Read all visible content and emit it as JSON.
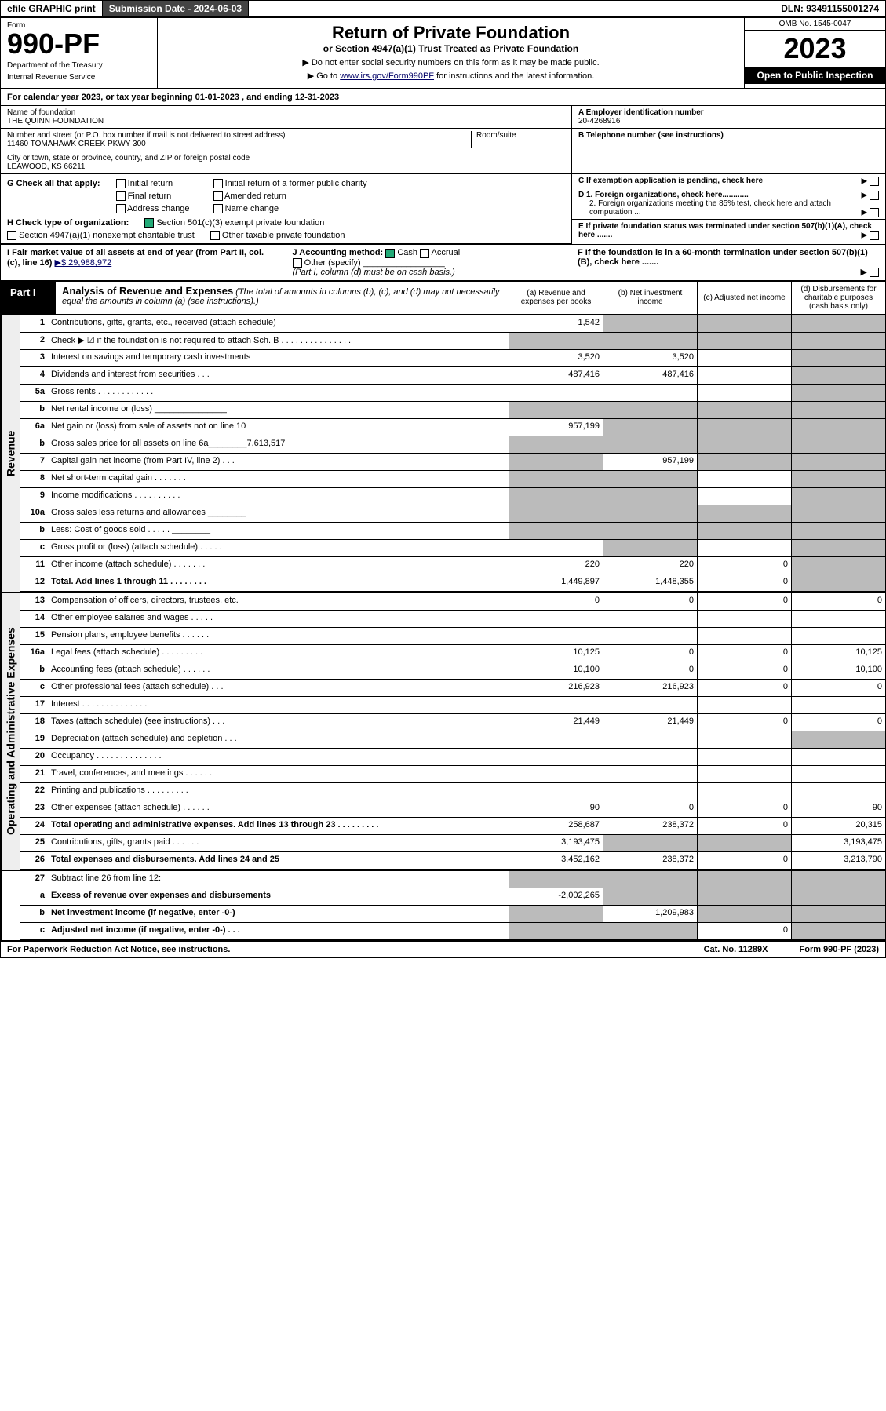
{
  "topbar": {
    "efile": "efile GRAPHIC print",
    "submission": "Submission Date - 2024-06-03",
    "dln": "DLN: 93491155001274"
  },
  "header": {
    "form": "Form",
    "formno": "990-PF",
    "dept1": "Department of the Treasury",
    "dept2": "Internal Revenue Service",
    "title": "Return of Private Foundation",
    "subtitle": "or Section 4947(a)(1) Trust Treated as Private Foundation",
    "note1": "▶ Do not enter social security numbers on this form as it may be made public.",
    "note2_pre": "▶ Go to ",
    "note2_link": "www.irs.gov/Form990PF",
    "note2_post": " for instructions and the latest information.",
    "omb": "OMB No. 1545-0047",
    "year": "2023",
    "open": "Open to Public Inspection"
  },
  "calyear": {
    "pre": "For calendar year 2023, or tax year beginning ",
    "begin": "01-01-2023",
    "mid": " , and ending ",
    "end": "12-31-2023"
  },
  "info": {
    "name_label": "Name of foundation",
    "name": "THE QUINN FOUNDATION",
    "street_label": "Number and street (or P.O. box number if mail is not delivered to street address)",
    "street": "11460 TOMAHAWK CREEK PKWY 300",
    "room_label": "Room/suite",
    "city_label": "City or town, state or province, country, and ZIP or foreign postal code",
    "city": "LEAWOOD, KS  66211",
    "A_label": "A Employer identification number",
    "A": "20-4268916",
    "B_label": "B Telephone number (see instructions)",
    "C_label": "C If exemption application is pending, check here",
    "D1_label": "D 1. Foreign organizations, check here............",
    "D2_label": "2. Foreign organizations meeting the 85% test, check here and attach computation ...",
    "E_label": "E If private foundation status was terminated under section 507(b)(1)(A), check here .......",
    "F_label": "F If the foundation is in a 60-month termination under section 507(b)(1)(B), check here ......."
  },
  "G": {
    "label": "G Check all that apply:",
    "opts": [
      "Initial return",
      "Final return",
      "Address change",
      "Initial return of a former public charity",
      "Amended return",
      "Name change"
    ]
  },
  "H": {
    "label": "H Check type of organization:",
    "opt1": "Section 501(c)(3) exempt private foundation",
    "opt2": "Section 4947(a)(1) nonexempt charitable trust",
    "opt3": "Other taxable private foundation"
  },
  "I": {
    "label": "I Fair market value of all assets at end of year (from Part II, col. (c), line 16)",
    "value": "▶$  29,988,972"
  },
  "J": {
    "label": "J Accounting method:",
    "cash": "Cash",
    "accrual": "Accrual",
    "other": "Other (specify)",
    "note": "(Part I, column (d) must be on cash basis.)"
  },
  "part1": {
    "label": "Part I",
    "title": "Analysis of Revenue and Expenses",
    "titlenote": " (The total of amounts in columns (b), (c), and (d) may not necessarily equal the amounts in column (a) (see instructions).)",
    "cols": {
      "a": "(a) Revenue and expenses per books",
      "b": "(b) Net investment income",
      "c": "(c) Adjusted net income",
      "d": "(d) Disbursements for charitable purposes (cash basis only)"
    }
  },
  "revenue_label": "Revenue",
  "revenue_rows": [
    {
      "num": "1",
      "desc": "Contributions, gifts, grants, etc., received (attach schedule)",
      "a": "1,542",
      "b": "",
      "c": "",
      "d": "",
      "gb": true,
      "gc": true,
      "gd": true
    },
    {
      "num": "2",
      "desc": "Check ▶ ☑ if the foundation is not required to attach Sch. B   .  .  .  .  .  .  .  .  .  .  .  .  .  .  .",
      "a": "",
      "b": "",
      "c": "",
      "d": "",
      "gb": true,
      "gc": true,
      "gd": true,
      "ga": true
    },
    {
      "num": "3",
      "desc": "Interest on savings and temporary cash investments",
      "a": "3,520",
      "b": "3,520",
      "c": "",
      "d": "",
      "gd": true
    },
    {
      "num": "4",
      "desc": "Dividends and interest from securities   .  .  .",
      "a": "487,416",
      "b": "487,416",
      "c": "",
      "d": "",
      "gd": true
    },
    {
      "num": "5a",
      "desc": "Gross rents   .  .  .  .  .  .  .  .  .  .  .  .",
      "a": "",
      "b": "",
      "c": "",
      "d": "",
      "gd": true
    },
    {
      "num": "b",
      "desc": "Net rental income or (loss) _______________",
      "a": "",
      "b": "",
      "c": "",
      "d": "",
      "ga": true,
      "gb": true,
      "gc": true,
      "gd": true
    },
    {
      "num": "6a",
      "desc": "Net gain or (loss) from sale of assets not on line 10",
      "a": "957,199",
      "b": "",
      "c": "",
      "d": "",
      "gb": true,
      "gc": true,
      "gd": true
    },
    {
      "num": "b",
      "desc": "Gross sales price for all assets on line 6a________7,613,517",
      "a": "",
      "b": "",
      "c": "",
      "d": "",
      "ga": true,
      "gb": true,
      "gc": true,
      "gd": true
    },
    {
      "num": "7",
      "desc": "Capital gain net income (from Part IV, line 2)   .  .  .",
      "a": "",
      "b": "957,199",
      "c": "",
      "d": "",
      "ga": true,
      "gc": true,
      "gd": true
    },
    {
      "num": "8",
      "desc": "Net short-term capital gain  .  .  .  .  .  .  .",
      "a": "",
      "b": "",
      "c": "",
      "d": "",
      "ga": true,
      "gb": true,
      "gd": true
    },
    {
      "num": "9",
      "desc": "Income modifications .  .  .  .  .  .  .  .  .  .",
      "a": "",
      "b": "",
      "c": "",
      "d": "",
      "ga": true,
      "gb": true,
      "gd": true
    },
    {
      "num": "10a",
      "desc": "Gross sales less returns and allowances ________",
      "a": "",
      "b": "",
      "c": "",
      "d": "",
      "ga": true,
      "gb": true,
      "gc": true,
      "gd": true
    },
    {
      "num": "b",
      "desc": "Less: Cost of goods sold    .  .  .  .  .  ________",
      "a": "",
      "b": "",
      "c": "",
      "d": "",
      "ga": true,
      "gb": true,
      "gc": true,
      "gd": true
    },
    {
      "num": "c",
      "desc": "Gross profit or (loss) (attach schedule)    .  .  .  .  .",
      "a": "",
      "b": "",
      "c": "",
      "d": "",
      "gb": true,
      "gd": true
    },
    {
      "num": "11",
      "desc": "Other income (attach schedule)   .  .  .  .  .  .  .",
      "a": "220",
      "b": "220",
      "c": "0",
      "d": "",
      "gd": true
    },
    {
      "num": "12",
      "desc": "Total. Add lines 1 through 11   .  .  .  .  .  .  .  .",
      "a": "1,449,897",
      "b": "1,448,355",
      "c": "0",
      "d": "",
      "gd": true,
      "bold": true
    }
  ],
  "expenses_label": "Operating and Administrative Expenses",
  "expenses_rows": [
    {
      "num": "13",
      "desc": "Compensation of officers, directors, trustees, etc.",
      "a": "0",
      "b": "0",
      "c": "0",
      "d": "0"
    },
    {
      "num": "14",
      "desc": "Other employee salaries and wages  .  .  .  .  .",
      "a": "",
      "b": "",
      "c": "",
      "d": ""
    },
    {
      "num": "15",
      "desc": "Pension plans, employee benefits  .  .  .  .  .  .",
      "a": "",
      "b": "",
      "c": "",
      "d": ""
    },
    {
      "num": "16a",
      "desc": "Legal fees (attach schedule) .  .  .  .  .  .  .  .  .",
      "a": "10,125",
      "b": "0",
      "c": "0",
      "d": "10,125"
    },
    {
      "num": "b",
      "desc": "Accounting fees (attach schedule) .  .  .  .  .  .",
      "a": "10,100",
      "b": "0",
      "c": "0",
      "d": "10,100"
    },
    {
      "num": "c",
      "desc": "Other professional fees (attach schedule)   .  .  .",
      "a": "216,923",
      "b": "216,923",
      "c": "0",
      "d": "0"
    },
    {
      "num": "17",
      "desc": "Interest .  .  .  .  .  .  .  .  .  .  .  .  .  .",
      "a": "",
      "b": "",
      "c": "",
      "d": ""
    },
    {
      "num": "18",
      "desc": "Taxes (attach schedule) (see instructions)   .  .  .",
      "a": "21,449",
      "b": "21,449",
      "c": "0",
      "d": "0"
    },
    {
      "num": "19",
      "desc": "Depreciation (attach schedule) and depletion   .  .  .",
      "a": "",
      "b": "",
      "c": "",
      "d": "",
      "gd": true
    },
    {
      "num": "20",
      "desc": "Occupancy .  .  .  .  .  .  .  .  .  .  .  .  .  .",
      "a": "",
      "b": "",
      "c": "",
      "d": ""
    },
    {
      "num": "21",
      "desc": "Travel, conferences, and meetings .  .  .  .  .  .",
      "a": "",
      "b": "",
      "c": "",
      "d": ""
    },
    {
      "num": "22",
      "desc": "Printing and publications .  .  .  .  .  .  .  .  .",
      "a": "",
      "b": "",
      "c": "",
      "d": ""
    },
    {
      "num": "23",
      "desc": "Other expenses (attach schedule)  .  .  .  .  .  .",
      "a": "90",
      "b": "0",
      "c": "0",
      "d": "90"
    },
    {
      "num": "24",
      "desc": "Total operating and administrative expenses. Add lines 13 through 23   .  .  .  .  .  .  .  .  .",
      "a": "258,687",
      "b": "238,372",
      "c": "0",
      "d": "20,315",
      "bold": true
    },
    {
      "num": "25",
      "desc": "Contributions, gifts, grants paid   .  .  .  .  .  .",
      "a": "3,193,475",
      "b": "",
      "c": "",
      "d": "3,193,475",
      "gb": true,
      "gc": true
    },
    {
      "num": "26",
      "desc": "Total expenses and disbursements. Add lines 24 and 25",
      "a": "3,452,162",
      "b": "238,372",
      "c": "0",
      "d": "3,213,790",
      "bold": true
    }
  ],
  "final_rows": [
    {
      "num": "27",
      "desc": "Subtract line 26 from line 12:",
      "a": "",
      "b": "",
      "c": "",
      "d": "",
      "ga": true,
      "gb": true,
      "gc": true,
      "gd": true
    },
    {
      "num": "a",
      "desc": "Excess of revenue over expenses and disbursements",
      "a": "-2,002,265",
      "b": "",
      "c": "",
      "d": "",
      "gb": true,
      "gc": true,
      "gd": true,
      "bold": true
    },
    {
      "num": "b",
      "desc": "Net investment income (if negative, enter -0-)",
      "a": "",
      "b": "1,209,983",
      "c": "",
      "d": "",
      "ga": true,
      "gc": true,
      "gd": true,
      "bold": true
    },
    {
      "num": "c",
      "desc": "Adjusted net income (if negative, enter -0-)   .  .  .",
      "a": "",
      "b": "",
      "c": "0",
      "d": "",
      "ga": true,
      "gb": true,
      "gd": true,
      "bold": true
    }
  ],
  "footer": {
    "left": "For Paperwork Reduction Act Notice, see instructions.",
    "mid": "Cat. No. 11289X",
    "right": "Form 990-PF (2023)"
  },
  "colors": {
    "grey": "#bbbbbb",
    "darkbar": "#444444",
    "link": "#000066",
    "checked": "#22aa77"
  }
}
